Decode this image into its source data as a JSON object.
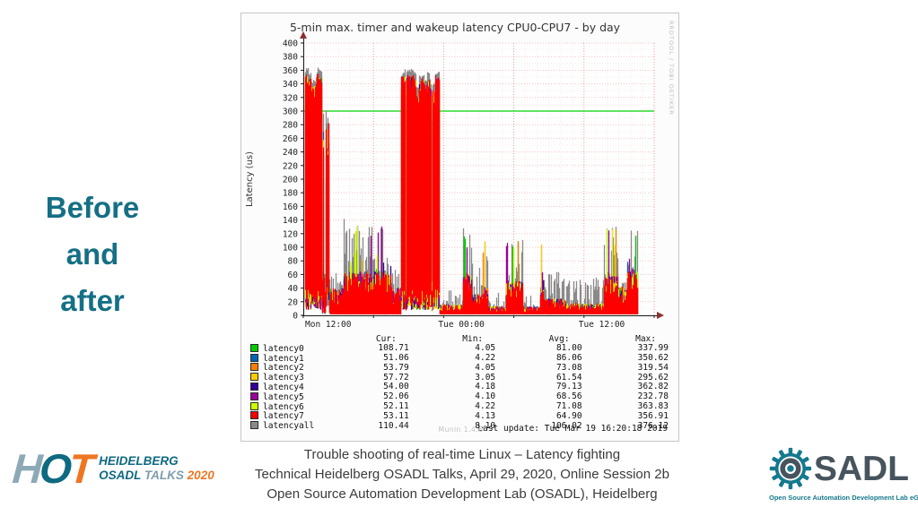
{
  "slide": {
    "left_title": {
      "lines": [
        "Before",
        "and",
        "after"
      ],
      "color": "#156f85"
    },
    "caption": {
      "lines": [
        "Trouble shooting of real-time Linux – Latency fighting",
        "Technical Heidelberg OSADL Talks, April 29, 2020, Online Session 2b",
        "Open Source Automation Development Lab (OSADL), Heidelberg"
      ]
    }
  },
  "hot_logo": {
    "h": "H",
    "o": "O",
    "t": "T",
    "line1": "HEIDELBERG",
    "line2_a": "OSADL",
    "line2_b": "TALKS",
    "year": "2020",
    "teal": "#0e6a80",
    "orange": "#ee7623"
  },
  "osadl_logo": {
    "letters": "SADL",
    "subtitle": "Open Source Automation Development Lab eG",
    "teal": "#15798e",
    "slate": "#47545e"
  },
  "chart_data": {
    "type": "line",
    "title": "5-min max. timer and wakeup latency CPU0-CPU7 - by day",
    "ylabel": "Latency (us)",
    "watermark": "RRDTOOL / TOBI OETIKER",
    "footer_brand": "Munin 1.4.6",
    "last_update": "Last update: Tue Mar 19 16:20:18 2019",
    "ylim": [
      0,
      400
    ],
    "ytick_step": 20,
    "x_hours": 30,
    "grid": true,
    "legend_position": "bottom",
    "xticks": [
      {
        "t": 0,
        "label": "Mon 12:00"
      },
      {
        "t": 6,
        "label": ""
      },
      {
        "t": 12,
        "label": "Tue 00:00"
      },
      {
        "t": 18,
        "label": ""
      },
      {
        "t": 24,
        "label": "Tue 12:00"
      },
      {
        "t": 30,
        "label": ""
      }
    ],
    "limit_line": {
      "value": 300,
      "color": "#00d400"
    },
    "legend_headers": [
      "Cur:",
      "Min:",
      "Avg:",
      "Max:"
    ],
    "series": [
      {
        "name": "latency0",
        "color": "#00CC00",
        "cur": "108.71",
        "min": "4.05",
        "avg": "81.00",
        "max": "337.99"
      },
      {
        "name": "latency1",
        "color": "#0066B3",
        "cur": "51.06",
        "min": "4.22",
        "avg": "86.06",
        "max": "350.62"
      },
      {
        "name": "latency2",
        "color": "#FF8000",
        "cur": "53.79",
        "min": "4.05",
        "avg": "73.08",
        "max": "319.54"
      },
      {
        "name": "latency3",
        "color": "#FFCC00",
        "cur": "57.72",
        "min": "3.05",
        "avg": "61.54",
        "max": "295.62"
      },
      {
        "name": "latency4",
        "color": "#330099",
        "cur": "54.00",
        "min": "4.18",
        "avg": "79.13",
        "max": "362.82"
      },
      {
        "name": "latency5",
        "color": "#990099",
        "cur": "52.06",
        "min": "4.10",
        "avg": "68.56",
        "max": "232.78"
      },
      {
        "name": "latency6",
        "color": "#CCFF00",
        "cur": "52.11",
        "min": "4.22",
        "avg": "71.08",
        "max": "363.83"
      },
      {
        "name": "latency7",
        "color": "#FF0000",
        "cur": "53.11",
        "min": "4.13",
        "avg": "64.90",
        "max": "356.91"
      },
      {
        "name": "latencyall",
        "color": "#8a8a8a",
        "cur": "110.44",
        "min": "8.10",
        "avg": "106.02",
        "max": "376.12"
      }
    ],
    "render_profile": {
      "seed": 7,
      "note": "approximate envelope segments [t0,t1,mode(0 quiet,1 bump,2 burst,3 sparse-burst),envelope_max_us,baseline_us,spike_probability]",
      "segments": [
        [
          0.0,
          1.58,
          2,
          362,
          25,
          0
        ],
        [
          1.58,
          2.3,
          3,
          300,
          35,
          0
        ],
        [
          2.3,
          3.4,
          0,
          70,
          40,
          0.05
        ],
        [
          3.4,
          7.45,
          1,
          142,
          62,
          0.5
        ],
        [
          7.45,
          8.35,
          0,
          75,
          42,
          0.12
        ],
        [
          8.35,
          11.62,
          2,
          360,
          28,
          0
        ],
        [
          11.62,
          13.6,
          0,
          40,
          16,
          0.04
        ],
        [
          13.6,
          14.35,
          1,
          132,
          58,
          0.6
        ],
        [
          14.35,
          15.3,
          0,
          80,
          32,
          0.25
        ],
        [
          15.3,
          15.75,
          1,
          124,
          40,
          0.55
        ],
        [
          15.75,
          17.3,
          0,
          34,
          14,
          0.05
        ],
        [
          17.3,
          18.75,
          1,
          120,
          48,
          0.5
        ],
        [
          18.75,
          20.25,
          0,
          32,
          13,
          0.05
        ],
        [
          20.25,
          20.55,
          1,
          130,
          40,
          0.6
        ],
        [
          20.55,
          22.4,
          0,
          64,
          25,
          0.3
        ],
        [
          22.4,
          25.7,
          0,
          56,
          18,
          0.3
        ],
        [
          25.7,
          26.9,
          1,
          136,
          55,
          0.4
        ],
        [
          26.9,
          27.65,
          0,
          62,
          42,
          0.2
        ],
        [
          27.65,
          28.6,
          1,
          136,
          62,
          0.85
        ]
      ]
    }
  }
}
